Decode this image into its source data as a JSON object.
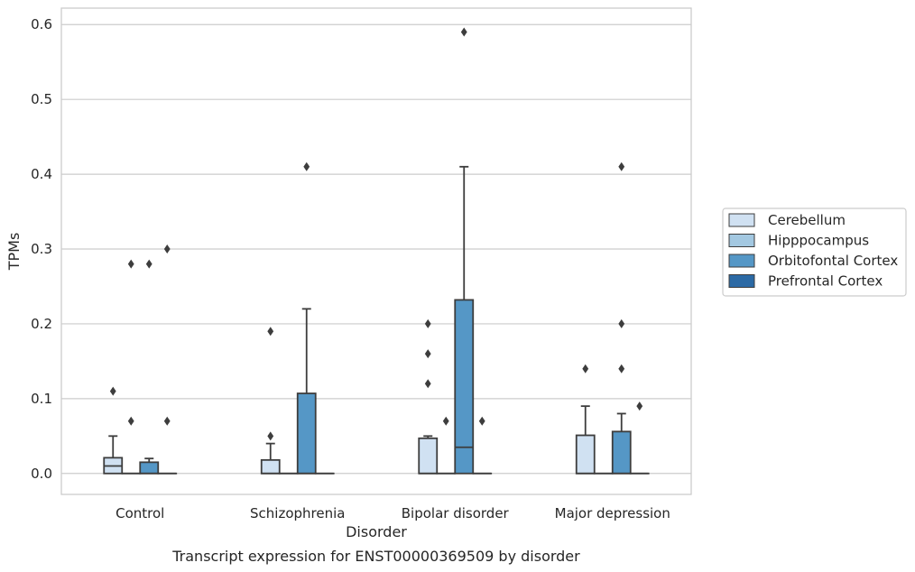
{
  "caption": "Transcript expression for ENST00000369509 by disorder",
  "chart_data": {
    "type": "box",
    "xlabel": "Disorder",
    "ylabel": "TPMs",
    "ylim": [
      -0.028,
      0.622
    ],
    "yticks": [
      "0.0",
      "0.1",
      "0.2",
      "0.3",
      "0.4",
      "0.5",
      "0.6"
    ],
    "grid": "horizontal",
    "legend_position": "right",
    "categories": [
      "Control",
      "Schizophrenia",
      "Bipolar disorder",
      "Major depression"
    ],
    "series": [
      {
        "name": "Cerebellum",
        "color": "#d0e1f2",
        "boxes": [
          {
            "q1": 0.0,
            "median": 0.01,
            "q3": 0.021,
            "whisker_low": 0.0,
            "whisker_high": 0.05,
            "outliers": [
              0.11
            ]
          },
          {
            "q1": 0.0,
            "median": 0.0,
            "q3": 0.018,
            "whisker_low": 0.0,
            "whisker_high": 0.04,
            "outliers": [
              0.05,
              0.19
            ]
          },
          {
            "q1": 0.0,
            "median": 0.0,
            "q3": 0.047,
            "whisker_low": 0.0,
            "whisker_high": 0.05,
            "outliers": [
              0.12,
              0.16,
              0.2
            ]
          },
          {
            "q1": 0.0,
            "median": 0.0,
            "q3": 0.051,
            "whisker_low": 0.0,
            "whisker_high": 0.09,
            "outliers": [
              0.14
            ]
          }
        ]
      },
      {
        "name": "Hipppocampus",
        "color": "#a3c8e1",
        "boxes": [
          {
            "q1": 0.0,
            "median": 0.0,
            "q3": 0.0,
            "whisker_low": 0.0,
            "whisker_high": 0.0,
            "outliers": [
              0.07,
              0.28
            ]
          },
          {
            "q1": 0.0,
            "median": 0.0,
            "q3": 0.0,
            "whisker_low": 0.0,
            "whisker_high": 0.0,
            "outliers": []
          },
          {
            "q1": 0.0,
            "median": 0.0,
            "q3": 0.0,
            "whisker_low": 0.0,
            "whisker_high": 0.0,
            "outliers": [
              0.07
            ]
          },
          {
            "q1": 0.0,
            "median": 0.0,
            "q3": 0.0,
            "whisker_low": 0.0,
            "whisker_high": 0.0,
            "outliers": []
          }
        ]
      },
      {
        "name": "Orbitofontal Cortex",
        "color": "#5597c6",
        "boxes": [
          {
            "q1": 0.0,
            "median": 0.0,
            "q3": 0.015,
            "whisker_low": 0.0,
            "whisker_high": 0.02,
            "outliers": [
              0.28
            ]
          },
          {
            "q1": 0.0,
            "median": 0.0,
            "q3": 0.107,
            "whisker_low": 0.0,
            "whisker_high": 0.22,
            "outliers": [
              0.41
            ]
          },
          {
            "q1": 0.0,
            "median": 0.035,
            "q3": 0.232,
            "whisker_low": 0.0,
            "whisker_high": 0.41,
            "outliers": [
              0.59
            ]
          },
          {
            "q1": 0.0,
            "median": 0.0,
            "q3": 0.056,
            "whisker_low": 0.0,
            "whisker_high": 0.08,
            "outliers": [
              0.14,
              0.2,
              0.41
            ]
          }
        ]
      },
      {
        "name": "Prefrontal Cortex",
        "color": "#2c6aa5",
        "boxes": [
          {
            "q1": 0.0,
            "median": 0.0,
            "q3": 0.0,
            "whisker_low": 0.0,
            "whisker_high": 0.0,
            "outliers": [
              0.07,
              0.3
            ]
          },
          {
            "q1": 0.0,
            "median": 0.0,
            "q3": 0.0,
            "whisker_low": 0.0,
            "whisker_high": 0.0,
            "outliers": []
          },
          {
            "q1": 0.0,
            "median": 0.0,
            "q3": 0.0,
            "whisker_low": 0.0,
            "whisker_high": 0.0,
            "outliers": [
              0.07
            ]
          },
          {
            "q1": 0.0,
            "median": 0.0,
            "q3": 0.0,
            "whisker_low": 0.0,
            "whisker_high": 0.0,
            "outliers": [
              0.09
            ]
          }
        ]
      }
    ]
  }
}
